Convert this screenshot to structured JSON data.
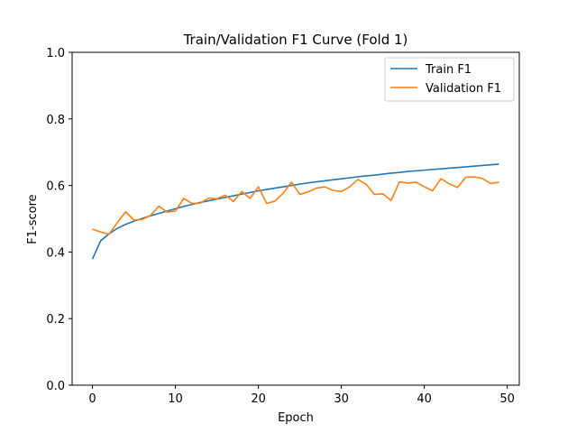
{
  "chart_data": {
    "type": "line",
    "title": "Train/Validation F1 Curve (Fold 1)",
    "xlabel": "Epoch",
    "ylabel": "F1-score",
    "xlim": [
      -2.45,
      51.45
    ],
    "ylim": [
      0.0,
      1.0
    ],
    "xticks": [
      "0",
      "10",
      "20",
      "30",
      "40",
      "50"
    ],
    "yticks": [
      "0.0",
      "0.2",
      "0.4",
      "0.6",
      "0.8",
      "1.0"
    ],
    "grid": false,
    "legend_position": "top-right",
    "x": [
      0,
      1,
      2,
      3,
      4,
      5,
      6,
      7,
      8,
      9,
      10,
      11,
      12,
      13,
      14,
      15,
      16,
      17,
      18,
      19,
      20,
      21,
      22,
      23,
      24,
      25,
      26,
      27,
      28,
      29,
      30,
      31,
      32,
      33,
      34,
      35,
      36,
      37,
      38,
      39,
      40,
      41,
      42,
      43,
      44,
      45,
      46,
      47,
      48,
      49
    ],
    "series": [
      {
        "name": "Train F1",
        "color": "#1f77b4",
        "values": [
          0.379,
          0.434,
          0.455,
          0.471,
          0.483,
          0.493,
          0.501,
          0.509,
          0.516,
          0.523,
          0.53,
          0.537,
          0.543,
          0.549,
          0.554,
          0.559,
          0.564,
          0.569,
          0.574,
          0.579,
          0.584,
          0.588,
          0.592,
          0.596,
          0.6,
          0.604,
          0.608,
          0.611,
          0.614,
          0.617,
          0.62,
          0.623,
          0.626,
          0.629,
          0.631,
          0.634,
          0.637,
          0.639,
          0.642,
          0.644,
          0.646,
          0.648,
          0.65,
          0.652,
          0.654,
          0.656,
          0.658,
          0.66,
          0.662,
          0.664
        ]
      },
      {
        "name": "Validation F1",
        "color": "#ff7f0e",
        "values": [
          0.469,
          0.46,
          0.454,
          0.488,
          0.521,
          0.496,
          0.498,
          0.51,
          0.538,
          0.52,
          0.523,
          0.561,
          0.546,
          0.547,
          0.562,
          0.56,
          0.571,
          0.552,
          0.582,
          0.561,
          0.596,
          0.546,
          0.553,
          0.577,
          0.61,
          0.573,
          0.581,
          0.592,
          0.596,
          0.585,
          0.582,
          0.596,
          0.618,
          0.603,
          0.573,
          0.575,
          0.555,
          0.611,
          0.607,
          0.61,
          0.596,
          0.584,
          0.62,
          0.605,
          0.594,
          0.625,
          0.626,
          0.621,
          0.606,
          0.61
        ]
      }
    ]
  }
}
